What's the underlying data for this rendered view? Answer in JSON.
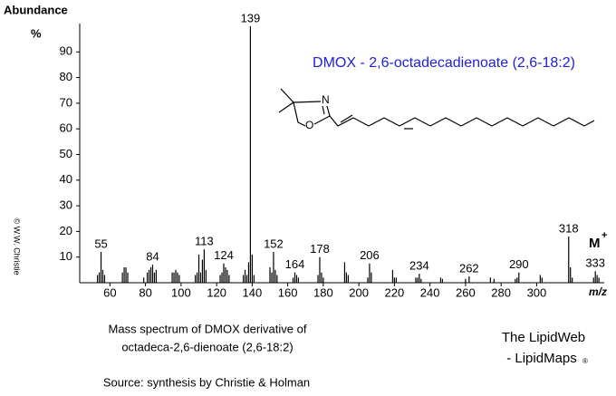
{
  "chart_data": {
    "type": "spectrum",
    "title": "DMOX - 2,6-octadecadienoate (2,6-18:2)",
    "title_color": "#2020e0",
    "y_label": "Abundance",
    "y_unit": "%",
    "x_label": "m/z",
    "copyright": "© W.W. Christie",
    "ion_label": {
      "symbol": "M",
      "charge": "+"
    },
    "caption": [
      "Mass spectrum of DMOX derivative of",
      "octadeca-2,6-dienoate (2,6-18:2)"
    ],
    "source": "Source:  synthesis by Christie & Holman",
    "brand": {
      "line1": "The LipidWeb",
      "line2": "- LipidMaps",
      "mark": "®"
    },
    "xlim": [
      43,
      338
    ],
    "ylim": [
      0,
      100
    ],
    "xticks": [
      60,
      80,
      100,
      120,
      140,
      160,
      180,
      200,
      220,
      240,
      260,
      280,
      300
    ],
    "yticks": [
      10,
      20,
      30,
      40,
      50,
      60,
      70,
      80,
      90
    ],
    "color": "#000000",
    "peaks": {
      "x": [
        55,
        84,
        113,
        124,
        139,
        152,
        164,
        178,
        206,
        234,
        262,
        290,
        318,
        333
      ],
      "values": [
        12,
        7,
        13,
        7.5,
        100,
        12,
        4,
        10,
        7.5,
        3.5,
        2.5,
        4,
        18,
        4.5
      ]
    },
    "other_peaks": {
      "x": [
        53,
        54,
        56,
        57,
        67,
        68,
        69,
        70,
        79,
        81,
        82,
        83,
        85,
        86,
        95,
        96,
        97,
        98,
        99,
        108,
        109,
        110,
        111,
        112,
        114,
        122,
        123,
        125,
        126,
        127,
        135,
        136,
        137,
        138,
        140,
        141,
        150,
        151,
        153,
        154,
        163,
        165,
        166,
        177,
        179,
        180,
        192,
        193,
        194,
        205,
        207,
        219,
        220,
        221,
        232,
        233,
        235,
        246,
        247,
        260,
        274,
        276,
        288,
        289,
        302,
        303,
        319,
        320,
        332,
        334,
        335
      ],
      "values": [
        3,
        4,
        5,
        3,
        4,
        6,
        6,
        4,
        2,
        4,
        5,
        6,
        4,
        5,
        4,
        4,
        5,
        4,
        3,
        3,
        4,
        11,
        4,
        9,
        5,
        3,
        4,
        6,
        5,
        3,
        3,
        5,
        3,
        8,
        11,
        3,
        6,
        4,
        5,
        3,
        2,
        3,
        2,
        3,
        4,
        2,
        8,
        4,
        3,
        2,
        4,
        5,
        2,
        2,
        2,
        2,
        1.5,
        2,
        1.5,
        1.5,
        2,
        1.5,
        1.5,
        2,
        3,
        2,
        6,
        2,
        2,
        3,
        2
      ]
    }
  }
}
